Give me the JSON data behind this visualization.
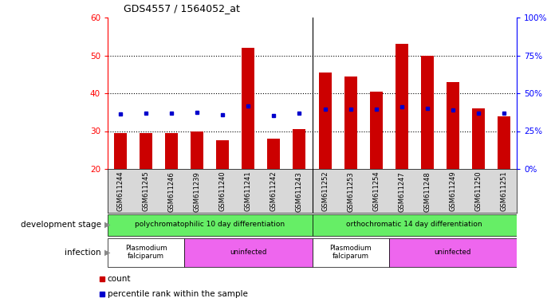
{
  "title": "GDS4557 / 1564052_at",
  "samples": [
    "GSM611244",
    "GSM611245",
    "GSM611246",
    "GSM611239",
    "GSM611240",
    "GSM611241",
    "GSM611242",
    "GSM611243",
    "GSM611252",
    "GSM611253",
    "GSM611254",
    "GSM611247",
    "GSM611248",
    "GSM611249",
    "GSM611250",
    "GSM611251"
  ],
  "counts": [
    29.5,
    29.5,
    29.5,
    30.0,
    27.5,
    52.0,
    28.0,
    30.5,
    45.5,
    44.5,
    40.5,
    53.0,
    50.0,
    43.0,
    36.0,
    34.0
  ],
  "percentile_ranks": [
    36.5,
    37.0,
    37.0,
    37.5,
    36.0,
    41.5,
    35.5,
    37.0,
    39.5,
    39.5,
    39.5,
    41.0,
    40.0,
    39.0,
    37.0,
    37.0
  ],
  "bar_color": "#cc0000",
  "dot_color": "#0000cc",
  "left_ylim": [
    20,
    60
  ],
  "left_yticks": [
    20,
    30,
    40,
    50,
    60
  ],
  "right_yticks_labels": [
    "0%",
    "25%",
    "50%",
    "75%",
    "100%"
  ],
  "right_yticks_vals": [
    0,
    25,
    50,
    75,
    100
  ],
  "dev_stage_labels": [
    "polychromatophilic 10 day differentiation",
    "orthochromatic 14 day differentiation"
  ],
  "dev_stage_color": "#66ee66",
  "infection_color_plasmodium": "#ffffff",
  "infection_color_uninfected": "#ee66ee",
  "xtick_bg": "#d8d8d8",
  "legend_count_label": "count",
  "legend_pct_label": "percentile rank within the sample"
}
